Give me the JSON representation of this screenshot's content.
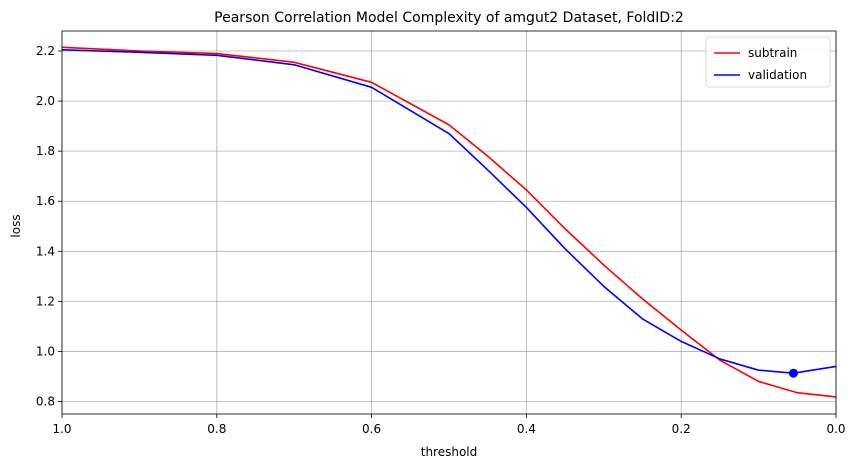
{
  "chart_data": {
    "type": "line",
    "title": "Pearson Correlation Model Complexity of amgut2 Dataset, FoldID:2",
    "xlabel": "threshold",
    "ylabel": "loss",
    "xlim": [
      1.0,
      0.0
    ],
    "ylim": [
      0.75,
      2.28
    ],
    "x_reversed": true,
    "grid": true,
    "legend_position": "top-right",
    "x_ticks": [
      {
        "value": 1.0,
        "label": "1.0"
      },
      {
        "value": 0.8,
        "label": "0.8"
      },
      {
        "value": 0.6,
        "label": "0.6"
      },
      {
        "value": 0.4,
        "label": "0.4"
      },
      {
        "value": 0.2,
        "label": "0.2"
      },
      {
        "value": 0.0,
        "label": "0.0"
      }
    ],
    "y_ticks": [
      {
        "value": 0.8,
        "label": "0.8"
      },
      {
        "value": 1.0,
        "label": "1.0"
      },
      {
        "value": 1.2,
        "label": "1.2"
      },
      {
        "value": 1.4,
        "label": "1.4"
      },
      {
        "value": 1.6,
        "label": "1.6"
      },
      {
        "value": 1.8,
        "label": "1.8"
      },
      {
        "value": 2.0,
        "label": "2.0"
      },
      {
        "value": 2.2,
        "label": "2.2"
      }
    ],
    "series": [
      {
        "name": "subtrain",
        "color": "#ff0000",
        "x": [
          1.0,
          0.9,
          0.8,
          0.7,
          0.6,
          0.5,
          0.45,
          0.4,
          0.35,
          0.3,
          0.25,
          0.2,
          0.15,
          0.1,
          0.05,
          0.0
        ],
        "y": [
          2.215,
          2.2,
          2.19,
          2.155,
          2.075,
          1.905,
          1.78,
          1.645,
          1.49,
          1.345,
          1.21,
          1.085,
          0.965,
          0.88,
          0.835,
          0.818
        ]
      },
      {
        "name": "validation",
        "color": "#0000ff",
        "x": [
          1.0,
          0.9,
          0.8,
          0.7,
          0.6,
          0.5,
          0.45,
          0.4,
          0.35,
          0.3,
          0.25,
          0.2,
          0.15,
          0.1,
          0.055,
          0.0
        ],
        "y": [
          2.205,
          2.195,
          2.183,
          2.145,
          2.055,
          1.87,
          1.725,
          1.575,
          1.41,
          1.26,
          1.13,
          1.04,
          0.97,
          0.925,
          0.913,
          0.94
        ]
      }
    ],
    "markers": [
      {
        "series": "validation",
        "x": 0.055,
        "y": 0.913,
        "color": "#0000ff"
      }
    ]
  }
}
